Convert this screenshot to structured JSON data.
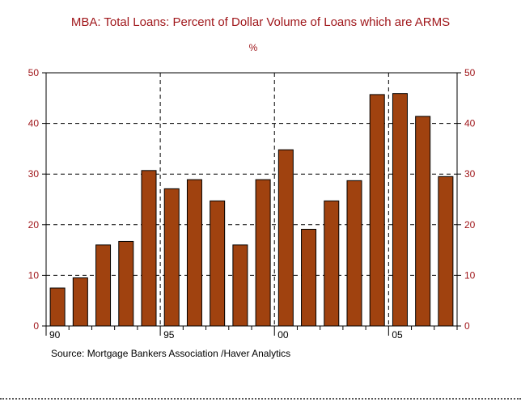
{
  "title": "MBA: Total Loans: Percent of Dollar Volume of Loans which are ARMS",
  "unit": "%",
  "source": "Source:  Mortgage Bankers Association /Haver Analytics",
  "colors": {
    "bar": "#a0420f",
    "title": "#a0171b",
    "axis_labels": "#a0171b"
  },
  "chart_data": {
    "type": "bar",
    "categories": [
      "1990",
      "1991",
      "1992",
      "1993",
      "1994",
      "1995",
      "1996",
      "1997",
      "1998",
      "1999",
      "2000",
      "2001",
      "2002",
      "2003",
      "2004",
      "2005",
      "2006",
      "2007"
    ],
    "values": [
      7.5,
      9.5,
      16.0,
      16.7,
      30.7,
      27.1,
      28.9,
      24.7,
      16.0,
      28.9,
      34.8,
      19.1,
      24.7,
      28.7,
      45.7,
      45.9,
      41.4,
      29.5
    ],
    "x_tick_labels": [
      "90",
      "95",
      "00",
      "05"
    ],
    "x_tick_indices": [
      0,
      5,
      10,
      15
    ],
    "ylim": [
      0,
      50
    ],
    "yticks": [
      0,
      10,
      20,
      30,
      40,
      50
    ],
    "grid": true,
    "right_axis": true
  }
}
